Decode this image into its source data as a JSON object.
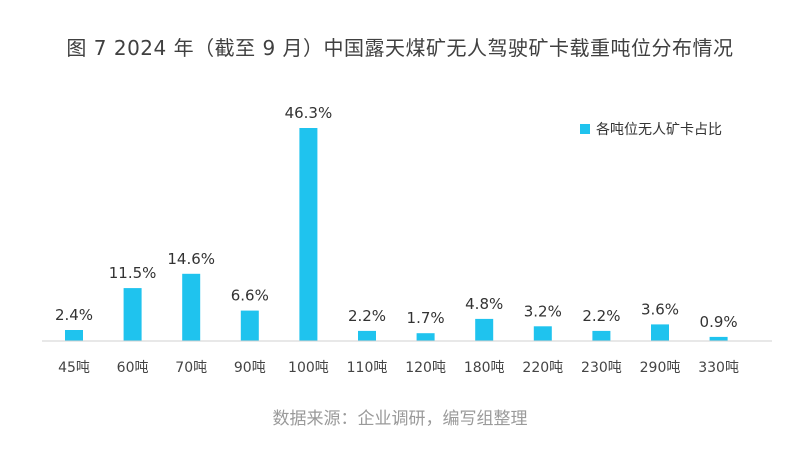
{
  "title": "图 7 2024 年（截至 9 月）中国露天煤矿无人驾驶矿卡载重吨位分布情况",
  "source": "数据来源：企业调研，编写组整理",
  "colors": {
    "bar": "#1fc3ee",
    "axis": "#d0d0d0"
  },
  "chart_data": {
    "type": "bar",
    "categories": [
      "45吨",
      "60吨",
      "70吨",
      "90吨",
      "100吨",
      "110吨",
      "120吨",
      "180吨",
      "220吨",
      "230吨",
      "290吨",
      "330吨"
    ],
    "values": [
      2.4,
      11.5,
      14.6,
      6.6,
      46.3,
      2.2,
      1.7,
      4.8,
      3.2,
      2.2,
      3.6,
      0.9
    ],
    "value_labels": [
      "2.4%",
      "11.5%",
      "14.6%",
      "6.6%",
      "46.3%",
      "2.2%",
      "1.7%",
      "4.8%",
      "3.2%",
      "2.2%",
      "3.6%",
      "0.9%"
    ],
    "series": [
      {
        "name": "各吨位无人矿卡占比"
      }
    ],
    "unit": "%",
    "legend_position": "top-right",
    "grid": false
  }
}
